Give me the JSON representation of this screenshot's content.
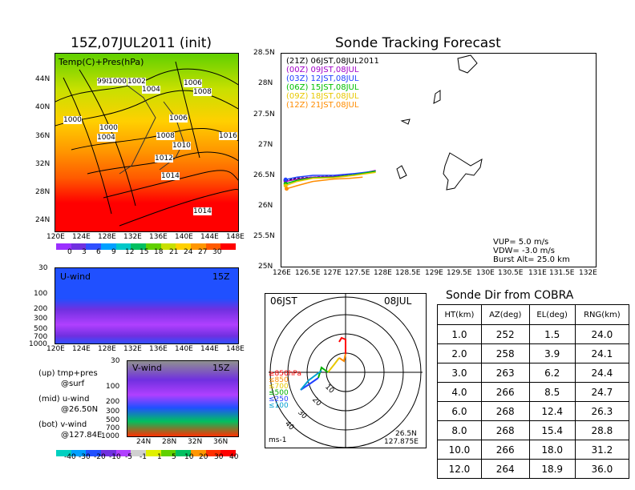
{
  "map_panel": {
    "title": "15Z,07JUL2011 (init)",
    "label": "Temp(C)+Pres(hPa)",
    "lat_ticks": [
      "44N",
      "40N",
      "36N",
      "32N",
      "28N",
      "24N"
    ],
    "lon_ticks": [
      "120E",
      "124E",
      "128E",
      "132E",
      "136E",
      "140E",
      "144E",
      "148E"
    ],
    "isobar_labels": [
      "998",
      "1000",
      "1002",
      "1004",
      "1006",
      "1008",
      "1000",
      "1000",
      "1004",
      "1006",
      "1008",
      "1010",
      "1012",
      "1014",
      "1016",
      "1014"
    ],
    "colorbar_labels": [
      "0",
      "3",
      "6",
      "9",
      "12",
      "15",
      "18",
      "21",
      "24",
      "27",
      "30"
    ]
  },
  "uwind_panel": {
    "label": "U-wind",
    "time": "15Z",
    "y_ticks": [
      "30",
      "100",
      "200",
      "300",
      "500",
      "700",
      "1000"
    ],
    "x_ticks": [
      "120E",
      "124E",
      "128E",
      "132E",
      "136E",
      "140E",
      "144E",
      "148E"
    ]
  },
  "vwind_panel": {
    "label": "V-wind",
    "time": "15Z",
    "y_ticks": [
      "30",
      "100",
      "200",
      "300",
      "500",
      "700",
      "1000"
    ],
    "x_ticks": [
      "24N",
      "28N",
      "32N",
      "36N"
    ]
  },
  "footnotes": [
    {
      "a": "(up) tmp+pres",
      "b": "@surf"
    },
    {
      "a": "(mid) u-wind",
      "b": "@26.50N"
    },
    {
      "a": "(bot) v-wind",
      "b": "@127.84E"
    }
  ],
  "wind_colorbar_labels": [
    "-40",
    "-30",
    "-20",
    "-10",
    "-5",
    "-1",
    "1",
    "5",
    "10",
    "20",
    "30",
    "40"
  ],
  "track_panel": {
    "title": "Sonde Tracking Forecast",
    "legend": [
      {
        "text": "(21Z)  06JST,08JUL2011",
        "color": "#000000"
      },
      {
        "text": "(00Z)  09JST,08JUL",
        "color": "#a000c8"
      },
      {
        "text": "(03Z)  12JST,08JUL",
        "color": "#2040ff"
      },
      {
        "text": "(06Z)  15JST,08JUL",
        "color": "#00c000"
      },
      {
        "text": "(09Z)  18JST,08JUL",
        "color": "#e8c800"
      },
      {
        "text": "(12Z)  21JST,08JUL",
        "color": "#ff8c00"
      }
    ],
    "y_ticks": [
      "28.5N",
      "28N",
      "27.5N",
      "27N",
      "26.5N",
      "26N",
      "25.5N",
      "25N"
    ],
    "x_ticks": [
      "126E",
      "126.5E",
      "127E",
      "127.5E",
      "128E",
      "128.5E",
      "129E",
      "129.5E",
      "130E",
      "130.5E",
      "131E",
      "131.5E",
      "132E"
    ],
    "info": [
      "VUP=  5.0  m/s",
      "VDW= -3.0  m/s",
      "Burst Alt=  25.0  km"
    ]
  },
  "polar_panel": {
    "left_label": "06JST",
    "right_label": "08JUL",
    "legend": [
      {
        "text": "≥850hPa",
        "color": "#ff0000"
      },
      {
        "text": "≤850",
        "color": "#ff8c00"
      },
      {
        "text": "≤700",
        "color": "#e8c800"
      },
      {
        "text": "≤500",
        "color": "#00b000"
      },
      {
        "text": "≤250",
        "color": "#2040ff"
      },
      {
        "text": "≤100",
        "color": "#00a0d0"
      }
    ],
    "ring_labels": [
      "10",
      "20",
      "30",
      "40"
    ],
    "unit": "ms-1",
    "loc1": "26.5N",
    "loc2": "127.875E"
  },
  "sonde_table": {
    "title": "Sonde Dir from COBRA",
    "headers": [
      "HT(km)",
      "AZ(deg)",
      "EL(deg)",
      "RNG(km)"
    ],
    "rows": [
      [
        "1.0",
        "252",
        "1.5",
        "24.0"
      ],
      [
        "2.0",
        "258",
        "3.9",
        "24.1"
      ],
      [
        "3.0",
        "263",
        "6.2",
        "24.4"
      ],
      [
        "4.0",
        "266",
        "8.5",
        "24.7"
      ],
      [
        "6.0",
        "268",
        "12.4",
        "26.3"
      ],
      [
        "8.0",
        "268",
        "15.4",
        "28.8"
      ],
      [
        "10.0",
        "266",
        "18.0",
        "31.2"
      ],
      [
        "12.0",
        "264",
        "18.9",
        "36.0"
      ]
    ]
  },
  "colors": {
    "temp_scale": [
      "#9b30ff",
      "#7030e0",
      "#3050ff",
      "#00a0ff",
      "#00c8c8",
      "#00c060",
      "#60d000",
      "#c8e000",
      "#ffd000",
      "#ff9600",
      "#ff5a00",
      "#ff0000"
    ],
    "wind_scale": [
      "#00d0c0",
      "#00a0ff",
      "#2050ff",
      "#7030e0",
      "#b040ff",
      "#d0d0d0",
      "#e0f000",
      "#60d000",
      "#00c060",
      "#ff9600",
      "#ff3000",
      "#ff0000"
    ]
  },
  "chart_data": [
    {
      "type": "heatmap",
      "title": "15Z,07JUL2011 (init)",
      "xlabel": "",
      "ylabel": "",
      "x": [
        "120E",
        "124E",
        "128E",
        "132E",
        "136E",
        "140E",
        "144E",
        "148E"
      ],
      "y": [
        "44N",
        "40N",
        "36N",
        "32N",
        "28N",
        "24N"
      ],
      "annotation": "Temp(C)+Pres(hPa)",
      "colorbar": [
        0,
        3,
        6,
        9,
        12,
        15,
        18,
        21,
        24,
        27,
        30
      ]
    },
    {
      "type": "heatmap",
      "title": "U-wind 15Z",
      "x": [
        "120E",
        "124E",
        "128E",
        "132E",
        "136E",
        "140E",
        "144E",
        "148E"
      ],
      "y": [
        30,
        100,
        200,
        300,
        500,
        700,
        1000
      ],
      "note": "pressure cross-section at 26.50N"
    },
    {
      "type": "heatmap",
      "title": "V-wind 15Z",
      "x": [
        "24N",
        "28N",
        "32N",
        "36N"
      ],
      "y": [
        30,
        100,
        200,
        300,
        500,
        700,
        1000
      ],
      "note": "pressure cross-section at 127.84E"
    },
    {
      "type": "line",
      "title": "Sonde Tracking Forecast",
      "xlim": [
        126,
        132
      ],
      "ylim": [
        25,
        28.5
      ],
      "series": [
        {
          "name": "(21Z)  06JST,08JUL2011",
          "x": [
            126.08,
            126.3,
            126.6,
            127.0,
            127.4,
            127.75
          ],
          "y": [
            26.42,
            26.45,
            26.47,
            26.49,
            26.52,
            26.56
          ]
        },
        {
          "name": "(00Z)  09JST,08JUL",
          "x": [
            126.08,
            126.3,
            126.6,
            127.0,
            127.4,
            127.8
          ],
          "y": [
            26.4,
            26.44,
            26.47,
            26.48,
            26.51,
            26.58
          ]
        },
        {
          "name": "(03Z)  12JST,08JUL",
          "x": [
            126.08,
            126.3,
            126.6,
            127.0,
            127.4,
            127.8
          ],
          "y": [
            26.43,
            26.47,
            26.5,
            26.5,
            26.53,
            26.57
          ]
        },
        {
          "name": "(06Z)  15JST,08JUL",
          "x": [
            126.08,
            126.3,
            126.6,
            127.0,
            127.4,
            127.8
          ],
          "y": [
            26.36,
            26.42,
            26.46,
            26.47,
            26.51,
            26.57
          ]
        },
        {
          "name": "(09Z)  18JST,08JUL",
          "x": [
            126.08,
            126.3,
            126.6,
            127.0,
            127.4,
            127.8
          ],
          "y": [
            26.33,
            26.4,
            26.45,
            26.46,
            26.5,
            26.55
          ]
        },
        {
          "name": "(12Z)  21JST,08JUL",
          "x": [
            126.1,
            126.3,
            126.6,
            127.0,
            127.3,
            127.55
          ],
          "y": [
            26.28,
            26.33,
            26.4,
            26.44,
            26.45,
            26.47
          ]
        }
      ]
    },
    {
      "type": "table",
      "title": "Sonde Dir from COBRA",
      "columns": [
        "HT(km)",
        "AZ(deg)",
        "EL(deg)",
        "RNG(km)"
      ],
      "rows": [
        [
          1.0,
          252,
          1.5,
          24.0
        ],
        [
          2.0,
          258,
          3.9,
          24.1
        ],
        [
          3.0,
          263,
          6.2,
          24.4
        ],
        [
          4.0,
          266,
          8.5,
          24.7
        ],
        [
          6.0,
          268,
          12.4,
          26.3
        ],
        [
          8.0,
          268,
          15.4,
          28.8
        ],
        [
          10.0,
          266,
          18.0,
          31.2
        ],
        [
          12.0,
          264,
          18.9,
          36.0
        ]
      ]
    }
  ]
}
